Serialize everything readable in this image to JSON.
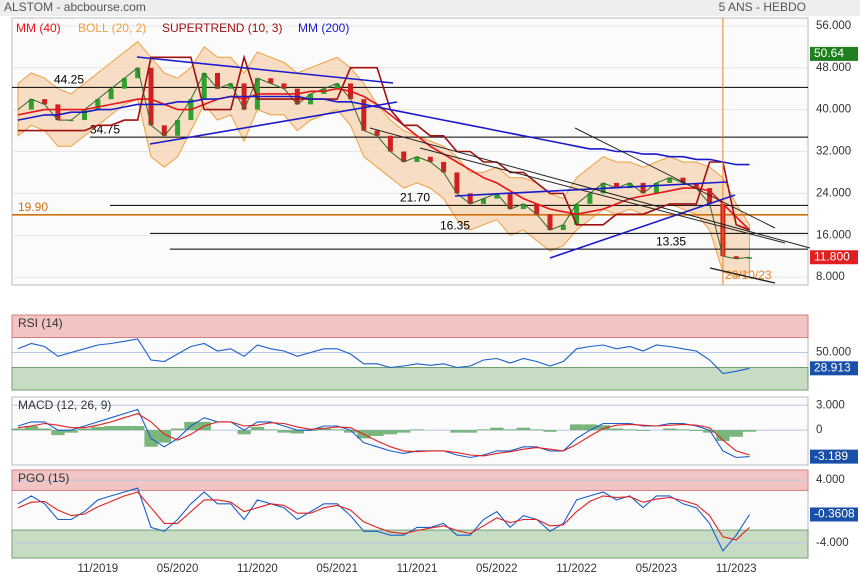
{
  "header": {
    "title": "ALSTOM - abcbourse.com",
    "period": "5 ANS - HEBDO"
  },
  "chart_data": [
    {
      "type": "line",
      "categories": [
        null,
        null,
        null,
        null,
        null,
        null,
        "11/2019",
        null,
        null,
        null,
        null,
        null,
        "05/2020",
        null,
        null,
        null,
        null,
        null,
        "11/2020",
        null,
        null,
        null,
        null,
        null,
        "05/2021",
        null,
        null,
        null,
        null,
        null,
        "11/2021",
        null,
        null,
        null,
        null,
        null,
        "05/2022",
        null,
        null,
        null,
        null,
        null,
        "11/2022",
        null,
        null,
        null,
        null,
        null,
        "05/2023",
        null,
        null,
        null,
        null,
        null,
        "11/2023",
        null
      ],
      "values": [
        40,
        42,
        41,
        38,
        38,
        40,
        42,
        44,
        46,
        48,
        37,
        35,
        38,
        42,
        47,
        44,
        45,
        40,
        46,
        45,
        44,
        41,
        43,
        44,
        45,
        42,
        36,
        35,
        32,
        30,
        31,
        30,
        28,
        24,
        22,
        23,
        24,
        21,
        22,
        20,
        17,
        18,
        22,
        24,
        26,
        25,
        26,
        24,
        26,
        27,
        26,
        25,
        22,
        12,
        11.5,
        11.8
      ],
      "color": "#2f6b2f",
      "series": [
        {
          "name": "MM (40)",
          "color": "#e8141a",
          "values": [
            39,
            39.5,
            40,
            40,
            40,
            40,
            40.5,
            41,
            41.5,
            42,
            42,
            41,
            40,
            40,
            41,
            42,
            42.5,
            42,
            43,
            43,
            43,
            43,
            43.5,
            43.5,
            44,
            43.5,
            42.5,
            41,
            39,
            37,
            35,
            33,
            31.5,
            30,
            28.5,
            27,
            26,
            24.5,
            23,
            22,
            21,
            20.5,
            20,
            20.5,
            21,
            22,
            23,
            23.5,
            24,
            24.5,
            25,
            25,
            24.5,
            22,
            19.5,
            17
          ]
        },
        {
          "name": "SUPERTREND (10, 3)",
          "color": "#a01010",
          "values": [
            36,
            36,
            36,
            36,
            36,
            36,
            37,
            37,
            38,
            38,
            50,
            50,
            50,
            50,
            40,
            40,
            40,
            50,
            42,
            42,
            42,
            42,
            42,
            42,
            42,
            48,
            48,
            48,
            40,
            37,
            37,
            35,
            35,
            32,
            32,
            30,
            30,
            28,
            28,
            26,
            24,
            24,
            18,
            18,
            18,
            20,
            20,
            20,
            21,
            22,
            22,
            22,
            30,
            30,
            18,
            17
          ]
        },
        {
          "name": "MM (200)",
          "color": "#1a1acc",
          "values": [
            38,
            38.5,
            39,
            39,
            39.5,
            39.5,
            40,
            40,
            40.5,
            41,
            41,
            41,
            41.5,
            41.5,
            42,
            42,
            42.5,
            42.5,
            42.5,
            42.5,
            42.5,
            42.5,
            42,
            42,
            41.5,
            41.5,
            41,
            40.5,
            40,
            39.5,
            39,
            38.5,
            38,
            37.5,
            37,
            36.5,
            36,
            35.5,
            35,
            34.5,
            34,
            33.5,
            33,
            32.5,
            32.5,
            32,
            32,
            31.5,
            31.5,
            31,
            31,
            30.5,
            30.5,
            30,
            29.5,
            29.5
          ]
        }
      ],
      "boll": {
        "name": "BOLL (20, 2)",
        "color": "#f0a040",
        "upper": [
          45,
          47,
          46,
          44,
          43,
          45,
          47,
          49,
          51,
          53,
          50,
          47,
          46,
          48,
          52,
          50,
          50,
          47,
          51,
          50,
          49,
          47,
          48,
          49,
          50,
          48,
          45,
          41,
          38,
          36,
          35,
          34,
          33,
          31,
          28,
          28,
          29,
          27,
          27,
          26,
          24,
          23,
          27,
          29,
          31,
          30,
          30,
          29,
          30,
          31,
          30,
          30,
          29,
          27,
          22,
          18
        ],
        "lower": [
          35,
          37,
          36,
          33,
          33,
          35,
          37,
          39,
          41,
          42,
          31,
          29,
          31,
          36,
          41,
          38,
          39,
          34,
          40,
          39,
          39,
          36,
          38,
          39,
          40,
          37,
          31,
          29,
          27,
          25,
          26,
          25,
          23,
          19,
          17,
          18,
          19,
          16,
          17,
          15,
          13,
          14,
          17,
          19,
          21,
          20,
          21,
          20,
          21,
          22,
          21,
          20,
          17,
          9,
          8,
          9
        ]
      },
      "levels": [
        {
          "value": 44.25,
          "label": "44.25",
          "color": "#000000"
        },
        {
          "value": 34.75,
          "label": "34.75",
          "color": "#000000"
        },
        {
          "value": 21.7,
          "label": "21.70",
          "color": "#000000"
        },
        {
          "value": 19.9,
          "label": "19.90",
          "color": "#d07010"
        },
        {
          "value": 16.35,
          "label": "16.35",
          "color": "#000000"
        },
        {
          "value": 13.35,
          "label": "13.35",
          "color": "#000000"
        }
      ],
      "event": {
        "label": "23/10/23",
        "index": 53,
        "color": "#f08020"
      },
      "price_tag": {
        "value": 11.8,
        "label": "11.800",
        "color": "#e02020"
      },
      "upper_tag": {
        "value": 50.64,
        "color": "#208020"
      },
      "ylim": [
        6.5,
        57.5
      ],
      "yticks": [
        {
          "value": 8,
          "label": "8.000"
        },
        {
          "value": 16,
          "label": "16.000"
        },
        {
          "value": 24,
          "label": "24.000"
        },
        {
          "value": 32,
          "label": "32.000"
        },
        {
          "value": 40,
          "label": "40.000"
        },
        {
          "value": 48,
          "label": "48.000"
        },
        {
          "value": 56,
          "label": "56.000"
        }
      ]
    },
    {
      "type": "line",
      "title": "RSI (14)",
      "series": [
        {
          "color": "#1a5fcc",
          "values": [
            55,
            62,
            58,
            45,
            50,
            55,
            60,
            62,
            65,
            68,
            40,
            38,
            48,
            58,
            62,
            52,
            55,
            45,
            60,
            55,
            52,
            45,
            50,
            55,
            55,
            48,
            35,
            35,
            30,
            32,
            35,
            33,
            35,
            30,
            32,
            40,
            42,
            36,
            42,
            38,
            32,
            38,
            55,
            58,
            60,
            55,
            58,
            52,
            60,
            58,
            55,
            52,
            40,
            22,
            25,
            28.913
          ]
        }
      ],
      "zones": [
        70,
        30
      ],
      "tag": 28.913,
      "ylim": [
        0,
        100
      ],
      "yticks": [
        {
          "value": 50,
          "label": "50.000"
        }
      ]
    },
    {
      "type": "line",
      "title": "MACD (12, 26, 9)",
      "series": [
        {
          "color": "#1a5fcc",
          "values": [
            0.5,
            1,
            1,
            0,
            0,
            0.5,
            1,
            1.5,
            2,
            2.5,
            -1,
            -2,
            -1,
            0.5,
            1.5,
            1,
            1,
            0,
            1,
            1,
            0.5,
            0,
            0,
            0.5,
            0.5,
            0,
            -1.5,
            -2,
            -2.5,
            -2.8,
            -2.5,
            -2.5,
            -2.5,
            -3,
            -3.3,
            -3,
            -2.5,
            -2.5,
            -2,
            -2,
            -2.5,
            -2.5,
            -1,
            0,
            0.8,
            0.8,
            0.8,
            0.5,
            0.5,
            0.8,
            0.8,
            0.5,
            0,
            -2.5,
            -3.3,
            -3.189
          ]
        },
        {
          "color": "#e02020",
          "values": [
            0.3,
            0.5,
            0.8,
            0.6,
            0.3,
            0.3,
            0.6,
            1,
            1.5,
            2,
            1,
            -0.5,
            -1.2,
            -0.5,
            0.5,
            1,
            1,
            0.5,
            0.6,
            0.9,
            0.8,
            0.4,
            0.1,
            0.2,
            0.4,
            0.3,
            -0.5,
            -1.3,
            -2,
            -2.5,
            -2.6,
            -2.5,
            -2.5,
            -2.7,
            -3,
            -3.1,
            -2.8,
            -2.6,
            -2.3,
            -2.1,
            -2.3,
            -2.5,
            -1.7,
            -0.7,
            0.2,
            0.6,
            0.7,
            0.6,
            0.5,
            0.6,
            0.7,
            0.6,
            0.3,
            -1.2,
            -2.5,
            -3
          ]
        }
      ],
      "histogram": {
        "color": "#5aa55a",
        "values": [
          0.2,
          0.5,
          0.2,
          -0.6,
          -0.3,
          0.2,
          0.4,
          0.5,
          0.5,
          0.5,
          -2,
          -1.5,
          0.2,
          1,
          1,
          0,
          0,
          -0.5,
          0.4,
          0.1,
          -0.3,
          -0.4,
          -0.1,
          0.3,
          0.1,
          -0.3,
          -1,
          -0.7,
          -0.5,
          -0.3,
          0.1,
          0,
          0,
          -0.3,
          -0.3,
          0.1,
          0.3,
          0.1,
          0.3,
          0.1,
          -0.2,
          0,
          0.7,
          0.7,
          0.6,
          0.2,
          0.1,
          -0.1,
          0,
          0.2,
          0.1,
          -0.1,
          -0.3,
          -1.3,
          -0.8,
          -0.189
        ]
      },
      "tag": -3.189,
      "ylim": [
        -4.2,
        4
      ],
      "yticks": [
        {
          "value": 3,
          "label": "3.000"
        },
        0
      ]
    },
    {
      "type": "line",
      "title": "PGO (15)",
      "series": [
        {
          "color": "#1a5fcc",
          "values": [
            1,
            2,
            1,
            -1,
            -1,
            0,
            1.5,
            2,
            2.5,
            3,
            -2,
            -2.5,
            -1,
            1,
            2.5,
            1,
            1,
            -1,
            1.5,
            1,
            0.5,
            -1,
            0,
            1,
            1,
            -0.5,
            -2.5,
            -2.5,
            -3,
            -3,
            -2,
            -2,
            -1.5,
            -3,
            -3,
            -1,
            0,
            -2,
            -0.5,
            -1,
            -2.5,
            -1.5,
            1.5,
            2,
            2.5,
            1.5,
            2,
            0.5,
            2,
            2,
            1,
            0.5,
            -1.5,
            -5,
            -3,
            -0.3608
          ]
        },
        {
          "color": "#e02020",
          "values": [
            0.5,
            1.2,
            1.3,
            0.2,
            -0.5,
            -0.3,
            0.6,
            1.3,
            2,
            2.5,
            0.5,
            -1.5,
            -1.5,
            0,
            1.5,
            1.5,
            1.2,
            0,
            0.5,
            1,
            0.8,
            -0.2,
            -0.2,
            0.5,
            0.8,
            0.2,
            -1.3,
            -2,
            -2.6,
            -2.8,
            -2.4,
            -2.1,
            -1.8,
            -2.4,
            -2.8,
            -1.8,
            -0.8,
            -1.4,
            -1,
            -1,
            -1.8,
            -1.7,
            0,
            1.3,
            2,
            1.8,
            1.9,
            1.2,
            1.6,
            1.8,
            1.4,
            0.9,
            -0.5,
            -3.2,
            -3.6,
            -2
          ]
        }
      ],
      "zones": [
        2.7,
        -2.35
      ],
      "tag": -0.3608,
      "ylim": [
        -5.9,
        5.3
      ],
      "yticks": [
        {
          "value": 4,
          "label": "4.000"
        },
        {
          "value": -4,
          "label": "-4.000"
        }
      ]
    }
  ]
}
